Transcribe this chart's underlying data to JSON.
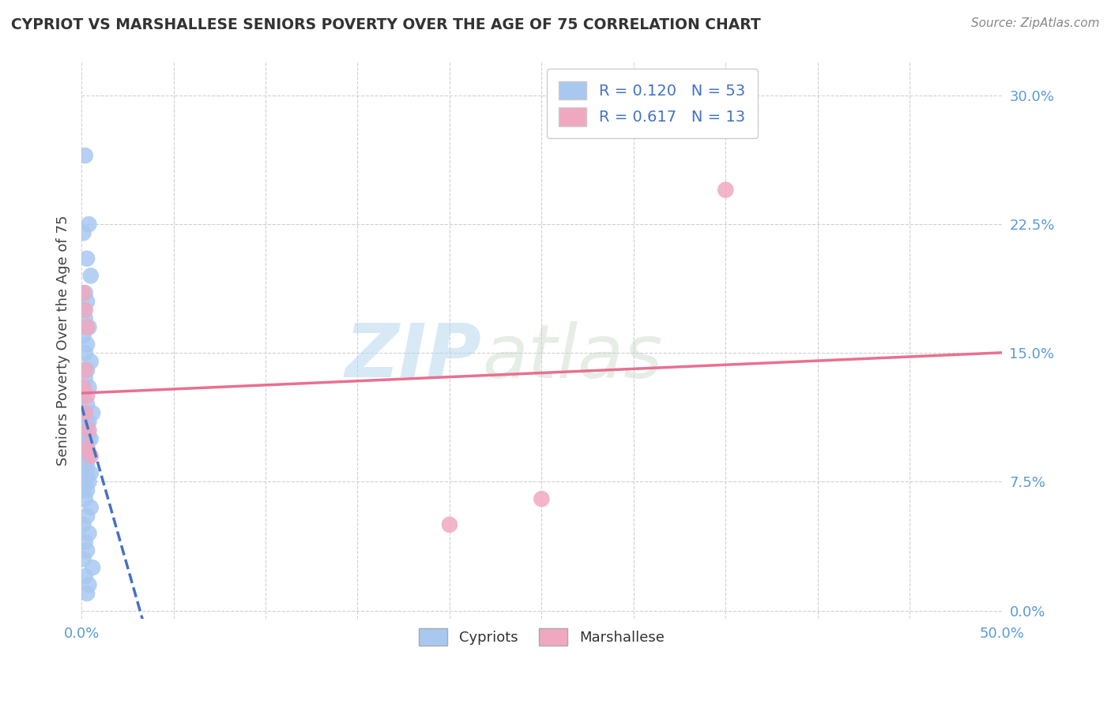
{
  "title": "CYPRIOT VS MARSHALLESE SENIORS POVERTY OVER THE AGE OF 75 CORRELATION CHART",
  "source": "Source: ZipAtlas.com",
  "ylabel": "Seniors Poverty Over the Age of 75",
  "xlim": [
    0,
    0.5
  ],
  "ylim": [
    -0.005,
    0.32
  ],
  "xticks": [
    0.0,
    0.05,
    0.1,
    0.15,
    0.2,
    0.25,
    0.3,
    0.35,
    0.4,
    0.45,
    0.5
  ],
  "yticks": [
    0.0,
    0.075,
    0.15,
    0.225,
    0.3
  ],
  "ytick_labels": [
    "0.0%",
    "7.5%",
    "15.0%",
    "22.5%",
    "30.0%"
  ],
  "cypriot_color": "#a8c8f0",
  "marshallese_color": "#f0a8c0",
  "cypriot_line_color": "#4472c4",
  "marshallese_line_color": "#e87090",
  "cypriot_R": 0.12,
  "cypriot_N": 53,
  "marshallese_R": 0.617,
  "marshallese_N": 13,
  "watermark_zip": "ZIP",
  "watermark_atlas": "atlas",
  "background_color": "#ffffff",
  "grid_color": "#d0d0d0",
  "title_color": "#333333",
  "axis_label_color": "#444444",
  "tick_color": "#5b9bd5",
  "legend_text_color": "#4472c4",
  "source_color": "#888888",
  "cypriot_x": [
    0.002,
    0.004,
    0.001,
    0.003,
    0.005,
    0.002,
    0.003,
    0.001,
    0.002,
    0.004,
    0.001,
    0.003,
    0.002,
    0.005,
    0.003,
    0.002,
    0.004,
    0.001,
    0.003,
    0.002,
    0.006,
    0.004,
    0.003,
    0.002,
    0.001,
    0.003,
    0.004,
    0.002,
    0.005,
    0.003,
    0.002,
    0.001,
    0.004,
    0.003,
    0.002,
    0.005,
    0.003,
    0.002,
    0.004,
    0.001,
    0.003,
    0.002,
    0.005,
    0.003,
    0.001,
    0.004,
    0.002,
    0.003,
    0.001,
    0.006,
    0.002,
    0.004,
    0.003
  ],
  "cypriot_y": [
    0.265,
    0.225,
    0.22,
    0.205,
    0.195,
    0.185,
    0.18,
    0.175,
    0.17,
    0.165,
    0.16,
    0.155,
    0.15,
    0.145,
    0.14,
    0.135,
    0.13,
    0.125,
    0.12,
    0.115,
    0.115,
    0.11,
    0.11,
    0.105,
    0.105,
    0.105,
    0.1,
    0.1,
    0.1,
    0.095,
    0.095,
    0.09,
    0.09,
    0.085,
    0.085,
    0.08,
    0.08,
    0.075,
    0.075,
    0.07,
    0.07,
    0.065,
    0.06,
    0.055,
    0.05,
    0.045,
    0.04,
    0.035,
    0.03,
    0.025,
    0.02,
    0.015,
    0.01
  ],
  "marshallese_x": [
    0.001,
    0.002,
    0.003,
    0.002,
    0.001,
    0.003,
    0.002,
    0.004,
    0.003,
    0.005,
    0.35,
    0.2,
    0.25
  ],
  "marshallese_y": [
    0.185,
    0.175,
    0.165,
    0.14,
    0.13,
    0.125,
    0.115,
    0.105,
    0.095,
    0.09,
    0.245,
    0.05,
    0.065
  ]
}
